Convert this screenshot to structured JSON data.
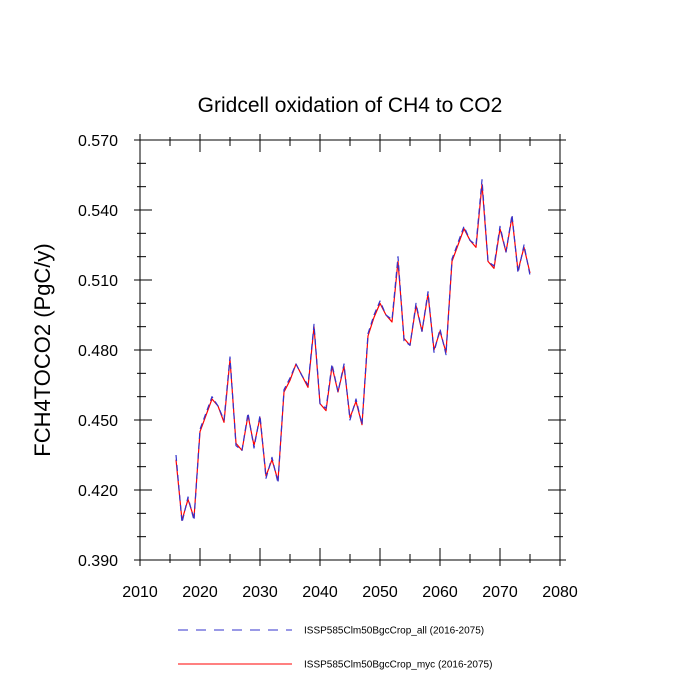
{
  "chart_data": {
    "type": "line",
    "title": "Gridcell oxidation of CH4 to CO2",
    "xlabel": "",
    "ylabel": "FCH4TOCO2  (PgC/y)",
    "xlim": [
      2010,
      2080
    ],
    "ylim": [
      0.39,
      0.57
    ],
    "xticks": [
      2010,
      2020,
      2030,
      2040,
      2050,
      2060,
      2070,
      2080
    ],
    "yticks": [
      0.39,
      0.42,
      0.45,
      0.48,
      0.51,
      0.54,
      0.57
    ],
    "xtick_labels": [
      "2010",
      "2020",
      "2030",
      "2040",
      "2050",
      "2060",
      "2070",
      "2080"
    ],
    "ytick_labels": [
      "0.390",
      "0.420",
      "0.450",
      "0.480",
      "0.510",
      "0.540",
      "0.570"
    ],
    "grid": false,
    "legend_position": "bottom",
    "x": [
      2016,
      2017,
      2018,
      2019,
      2020,
      2021,
      2022,
      2023,
      2024,
      2025,
      2026,
      2027,
      2028,
      2029,
      2030,
      2031,
      2032,
      2033,
      2034,
      2035,
      2036,
      2037,
      2038,
      2039,
      2040,
      2041,
      2042,
      2043,
      2044,
      2045,
      2046,
      2047,
      2048,
      2049,
      2050,
      2051,
      2052,
      2053,
      2054,
      2055,
      2056,
      2057,
      2058,
      2059,
      2060,
      2061,
      2062,
      2063,
      2064,
      2065,
      2066,
      2067,
      2068,
      2069,
      2070,
      2071,
      2072,
      2073,
      2074,
      2075
    ],
    "series": [
      {
        "name": "ISSP585Clm50BgcCrop_all (2016-2075)",
        "color": "#3333cc",
        "dash": "dashed",
        "values": [
          0.435,
          0.406,
          0.417,
          0.407,
          0.446,
          0.453,
          0.46,
          0.456,
          0.45,
          0.477,
          0.439,
          0.437,
          0.453,
          0.438,
          0.452,
          0.425,
          0.434,
          0.423,
          0.463,
          0.468,
          0.474,
          0.469,
          0.465,
          0.491,
          0.457,
          0.455,
          0.474,
          0.462,
          0.474,
          0.45,
          0.459,
          0.448,
          0.487,
          0.495,
          0.501,
          0.495,
          0.493,
          0.52,
          0.484,
          0.482,
          0.5,
          0.488,
          0.505,
          0.479,
          0.489,
          0.478,
          0.519,
          0.526,
          0.533,
          0.527,
          0.525,
          0.553,
          0.518,
          0.516,
          0.533,
          0.522,
          0.538,
          0.513,
          0.525,
          0.512
        ]
      },
      {
        "name": "ISSP585Clm50BgcCrop_myc (2016-2075)",
        "color": "#ff0000",
        "dash": "solid",
        "values": [
          0.433,
          0.407,
          0.416,
          0.408,
          0.445,
          0.452,
          0.459,
          0.456,
          0.449,
          0.476,
          0.44,
          0.437,
          0.452,
          0.439,
          0.451,
          0.426,
          0.433,
          0.424,
          0.462,
          0.467,
          0.474,
          0.469,
          0.464,
          0.49,
          0.457,
          0.454,
          0.473,
          0.462,
          0.473,
          0.451,
          0.458,
          0.448,
          0.486,
          0.494,
          0.5,
          0.495,
          0.492,
          0.518,
          0.485,
          0.482,
          0.499,
          0.488,
          0.504,
          0.48,
          0.488,
          0.479,
          0.518,
          0.525,
          0.532,
          0.527,
          0.524,
          0.551,
          0.518,
          0.515,
          0.532,
          0.522,
          0.537,
          0.514,
          0.524,
          0.513
        ]
      }
    ]
  }
}
